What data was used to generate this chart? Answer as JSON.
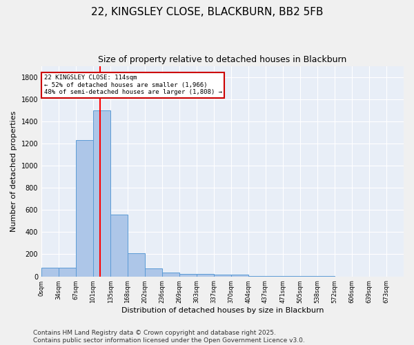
{
  "title_line1": "22, KINGSLEY CLOSE, BLACKBURN, BB2 5FB",
  "title_line2": "Size of property relative to detached houses in Blackburn",
  "xlabel": "Distribution of detached houses by size in Blackburn",
  "ylabel": "Number of detached properties",
  "bar_color": "#adc6e8",
  "bar_edge_color": "#5b9bd5",
  "background_color": "#e8eef7",
  "grid_color": "#ffffff",
  "red_line_x": 114,
  "annotation_text": "22 KINGSLEY CLOSE: 114sqm\n← 52% of detached houses are smaller (1,966)\n48% of semi-detached houses are larger (1,808) →",
  "annotation_box_color": "#ffffff",
  "annotation_box_edge": "#cc0000",
  "categories": [
    "0sqm",
    "34sqm",
    "67sqm",
    "101sqm",
    "135sqm",
    "168sqm",
    "202sqm",
    "236sqm",
    "269sqm",
    "303sqm",
    "337sqm",
    "370sqm",
    "404sqm",
    "437sqm",
    "471sqm",
    "505sqm",
    "538sqm",
    "572sqm",
    "606sqm",
    "639sqm",
    "673sqm"
  ],
  "bar_lefts": [
    0,
    34,
    67,
    101,
    135,
    168,
    202,
    236,
    269,
    303,
    337,
    370,
    404,
    437,
    471,
    505,
    538,
    572,
    606,
    639,
    673
  ],
  "bar_widths": [
    34,
    33,
    34,
    34,
    33,
    34,
    34,
    33,
    34,
    34,
    33,
    34,
    33,
    34,
    34,
    33,
    34,
    34,
    33,
    34,
    34
  ],
  "bar_heights": [
    80,
    80,
    1230,
    1500,
    560,
    210,
    75,
    35,
    25,
    20,
    17,
    15,
    5,
    3,
    2,
    1,
    1,
    0,
    0,
    0,
    0
  ],
  "ylim": [
    0,
    1900
  ],
  "xlim": [
    0,
    707
  ],
  "yticks": [
    0,
    200,
    400,
    600,
    800,
    1000,
    1200,
    1400,
    1600,
    1800
  ],
  "footer_text": "Contains HM Land Registry data © Crown copyright and database right 2025.\nContains public sector information licensed under the Open Government Licence v3.0.",
  "title_fontsize": 11,
  "label_fontsize": 8,
  "tick_fontsize": 7,
  "footer_fontsize": 6.5
}
